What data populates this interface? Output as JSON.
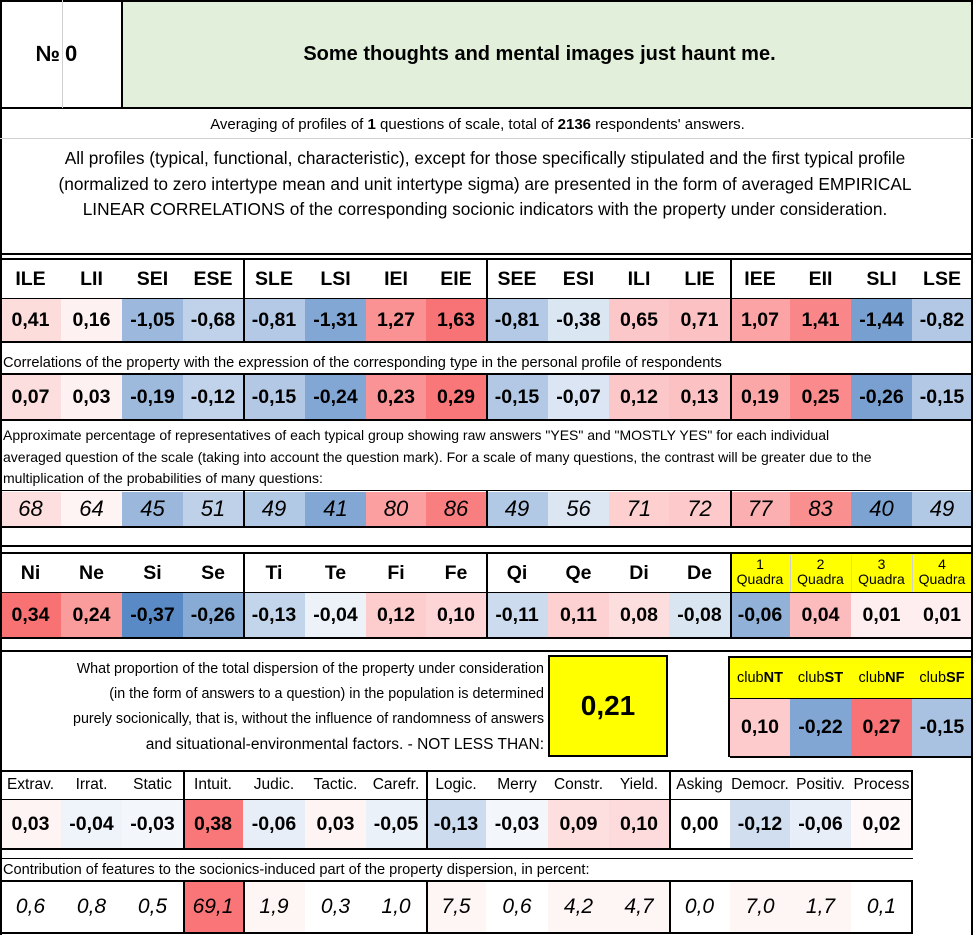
{
  "header": {
    "number_label": "№",
    "number_value": "0",
    "title": "Some thoughts and mental images just haunt me."
  },
  "averaging": {
    "prefix": "Averaging of profiles of ",
    "questions": "1",
    "middle": " questions of scale, total of ",
    "respondents": "2136",
    "suffix": " respondents' answers."
  },
  "description": [
    "All profiles (typical, functional, characteristic), except for those specifically stipulated and the first typical profile",
    "(normalized to zero intertype mean and unit intertype sigma) are presented in the form of averaged EMPIRICAL",
    "LINEAR CORRELATIONS of the corresponding socionic indicators with the property under consideration."
  ],
  "types": {
    "headers": [
      "ILE",
      "LII",
      "SEI",
      "ESE",
      "SLE",
      "LSI",
      "IEI",
      "EIE",
      "SEE",
      "ESI",
      "ILI",
      "LIE",
      "IEE",
      "EII",
      "SLI",
      "LSE"
    ],
    "normalized": [
      "0,41",
      "0,16",
      "-1,05",
      "-0,68",
      "-0,81",
      "-1,31",
      "1,27",
      "1,63",
      "-0,81",
      "-0,38",
      "0,65",
      "0,71",
      "1,07",
      "1,41",
      "-1,44",
      "-0,82"
    ],
    "correlation_caption": "Correlations of the property with the expression of the corresponding type in the personal profile of respondents",
    "correlations": [
      "0,07",
      "0,03",
      "-0,19",
      "-0,12",
      "-0,15",
      "-0,24",
      "0,23",
      "0,29",
      "-0,15",
      "-0,07",
      "0,12",
      "0,13",
      "0,19",
      "0,25",
      "-0,26",
      "-0,15"
    ],
    "percentage_caption": [
      "Approximate percentage of representatives of each typical group showing raw answers \"YES\" and \"MOSTLY YES\" for each individual",
      "averaged question of the scale (taking into account the question mark). For a scale of many questions, the contrast will be greater due to the",
      "multiplication of the probabilities of many questions:"
    ],
    "percentages": [
      "68",
      "64",
      "45",
      "51",
      "49",
      "41",
      "80",
      "86",
      "49",
      "56",
      "71",
      "72",
      "77",
      "83",
      "40",
      "49"
    ]
  },
  "functions": {
    "headers": [
      "Ni",
      "Ne",
      "Si",
      "Se",
      "Ti",
      "Te",
      "Fi",
      "Fe",
      "Qi",
      "Qe",
      "Di",
      "De"
    ],
    "values": [
      "0,34",
      "0,24",
      "-0,37",
      "-0,26",
      "-0,13",
      "-0,04",
      "0,12",
      "0,10",
      "-0,11",
      "0,11",
      "0,08",
      "-0,08"
    ],
    "quadra_numbers": [
      "1",
      "2",
      "3",
      "4"
    ],
    "quadra_word": "Quadra",
    "quadra_values": [
      "-0,06",
      "0,04",
      "0,01",
      "0,01"
    ]
  },
  "dispersion": {
    "text": [
      "What proportion of the total dispersion of the property under consideration",
      "(in the form of answers to a question) in the population is determined",
      "purely socionically, that is, without the influence of randomness of answers",
      "and situational-environmental factors. - NOT LESS THAN:"
    ],
    "value": "0,21"
  },
  "clubs": {
    "prefix": "club",
    "names": [
      "NT",
      "ST",
      "NF",
      "SF"
    ],
    "values": [
      "0,10",
      "-0,22",
      "0,27",
      "-0,15"
    ]
  },
  "traits": {
    "headers": [
      "Extrav.",
      "Irrat.",
      "Static",
      "Intuit.",
      "Judic.",
      "Tactic.",
      "Carefr.",
      "Logic.",
      "Merry",
      "Constr.",
      "Yield.",
      "Asking",
      "Democr.",
      "Positiv.",
      "Process"
    ],
    "values": [
      "0,03",
      "-0,04",
      "-0,03",
      "0,38",
      "-0,06",
      "0,03",
      "-0,05",
      "-0,13",
      "-0,03",
      "0,09",
      "0,10",
      "0,00",
      "-0,12",
      "-0,06",
      "0,02"
    ],
    "contribution_caption": "Contribution of features to the socionics-induced part of the property dispersion, in percent:",
    "contributions": [
      "0,6",
      "0,8",
      "0,5",
      "69,1",
      "1,9",
      "0,3",
      "1,0",
      "7,5",
      "0,6",
      "4,2",
      "4,7",
      "0,0",
      "7,0",
      "1,7",
      "0,1"
    ]
  },
  "colors": {
    "title_bg": "#e2efda",
    "highlight_yellow": "#ffff00",
    "strong_red": "#f8696b",
    "strong_blue": "#5a8ac6"
  }
}
